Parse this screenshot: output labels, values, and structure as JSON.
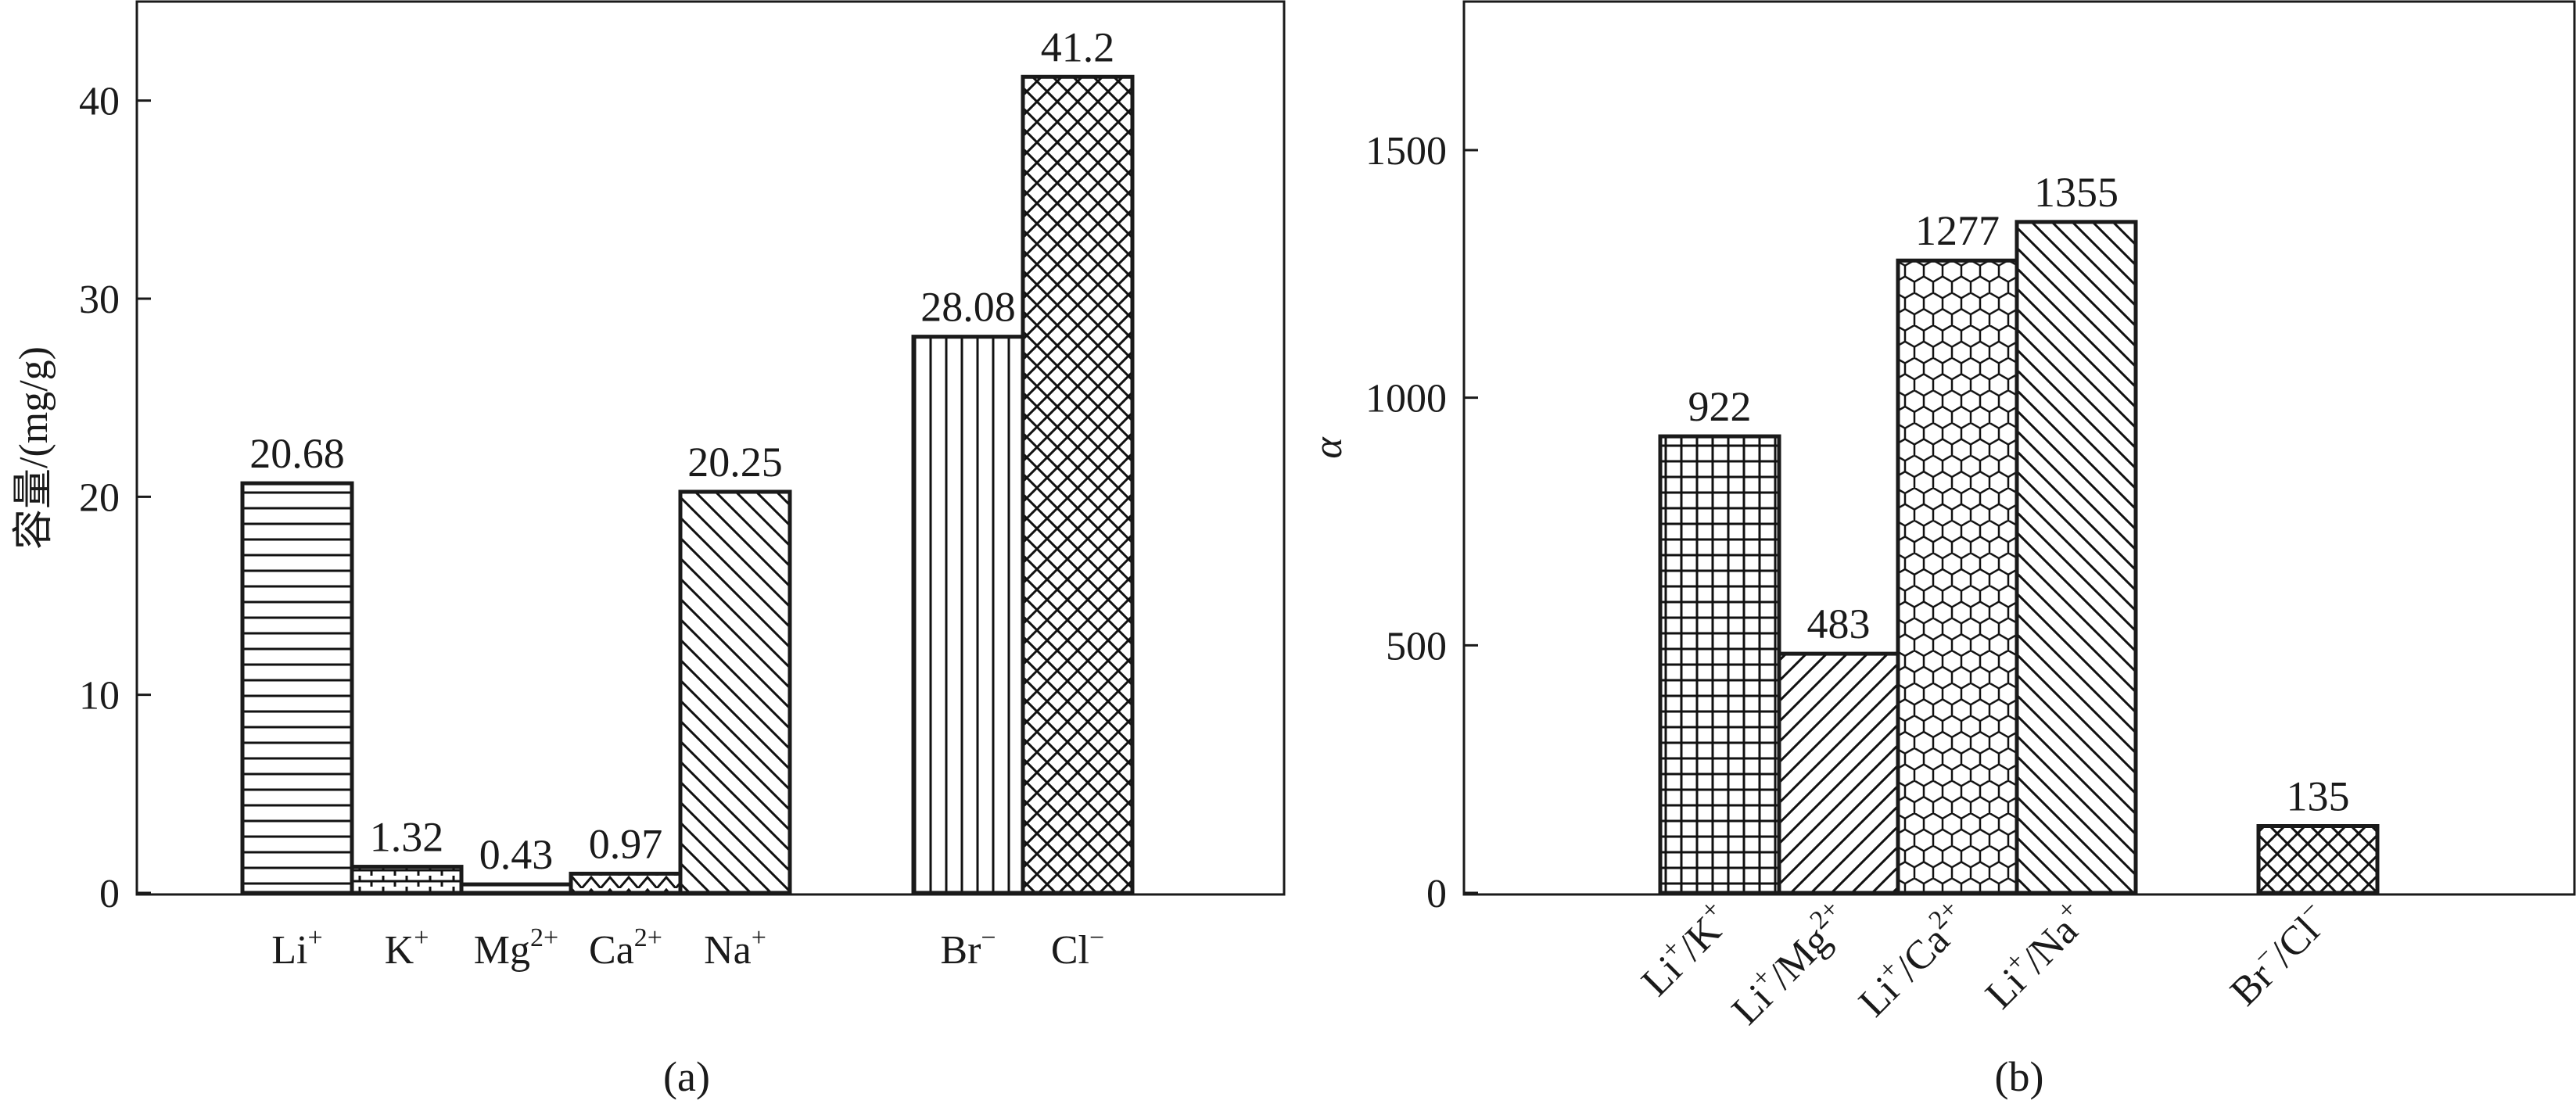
{
  "chart_data": [
    {
      "type": "bar",
      "panel": "(a)",
      "ylabel": "容量/(mg/g)",
      "ylim": [
        0,
        45
      ],
      "yticks": [
        0,
        10,
        20,
        30,
        40
      ],
      "grid": false,
      "legend": "none",
      "categories": [
        {
          "base": "Li",
          "sup": "+",
          "value": 20.68,
          "value_label": "20.68",
          "pattern": "hlines",
          "group": 0
        },
        {
          "base": "K",
          "sup": "+",
          "value": 1.32,
          "value_label": "1.32",
          "pattern": "hbrick",
          "group": 0
        },
        {
          "base": "Mg",
          "sup": "2+",
          "value": 0.43,
          "value_label": "0.43",
          "pattern": "solid",
          "group": 0
        },
        {
          "base": "Ca",
          "sup": "2+",
          "value": 0.97,
          "value_label": "0.97",
          "pattern": "tri",
          "group": 0
        },
        {
          "base": "Na",
          "sup": "+",
          "value": 20.25,
          "value_label": "20.25",
          "pattern": "backdiag",
          "group": 0
        },
        {
          "base": "Br",
          "sup": "−",
          "value": 28.08,
          "value_label": "28.08",
          "pattern": "vlines",
          "group": 1
        },
        {
          "base": "Cl",
          "sup": "−",
          "value": 41.2,
          "value_label": "41.2",
          "pattern": "crosshatch",
          "group": 1
        }
      ]
    },
    {
      "type": "bar",
      "panel": "(b)",
      "ylabel": "α",
      "ylim": [
        0,
        1800
      ],
      "yticks": [
        0,
        500,
        1000,
        1500
      ],
      "grid": false,
      "legend": "none",
      "categories": [
        {
          "a": "Li",
          "asup": "+",
          "b": "K",
          "bsup": "+",
          "value": 922,
          "value_label": "922",
          "pattern": "grid",
          "group": 0
        },
        {
          "a": "Li",
          "asup": "+",
          "b": "Mg",
          "bsup": "2+",
          "value": 483,
          "value_label": "483",
          "pattern": "fwddiag",
          "group": 0
        },
        {
          "a": "Li",
          "asup": "+",
          "b": "Ca",
          "bsup": "2+",
          "value": 1277,
          "value_label": "1277",
          "pattern": "hex",
          "group": 0
        },
        {
          "a": "Li",
          "asup": "+",
          "b": "Na",
          "bsup": "+",
          "value": 1355,
          "value_label": "1355",
          "pattern": "backdiag",
          "group": 0
        },
        {
          "a": "Br",
          "asup": "−",
          "b": "Cl",
          "bsup": "−",
          "value": 135,
          "value_label": "135",
          "pattern": "crosshatch",
          "group": 1
        }
      ]
    }
  ]
}
